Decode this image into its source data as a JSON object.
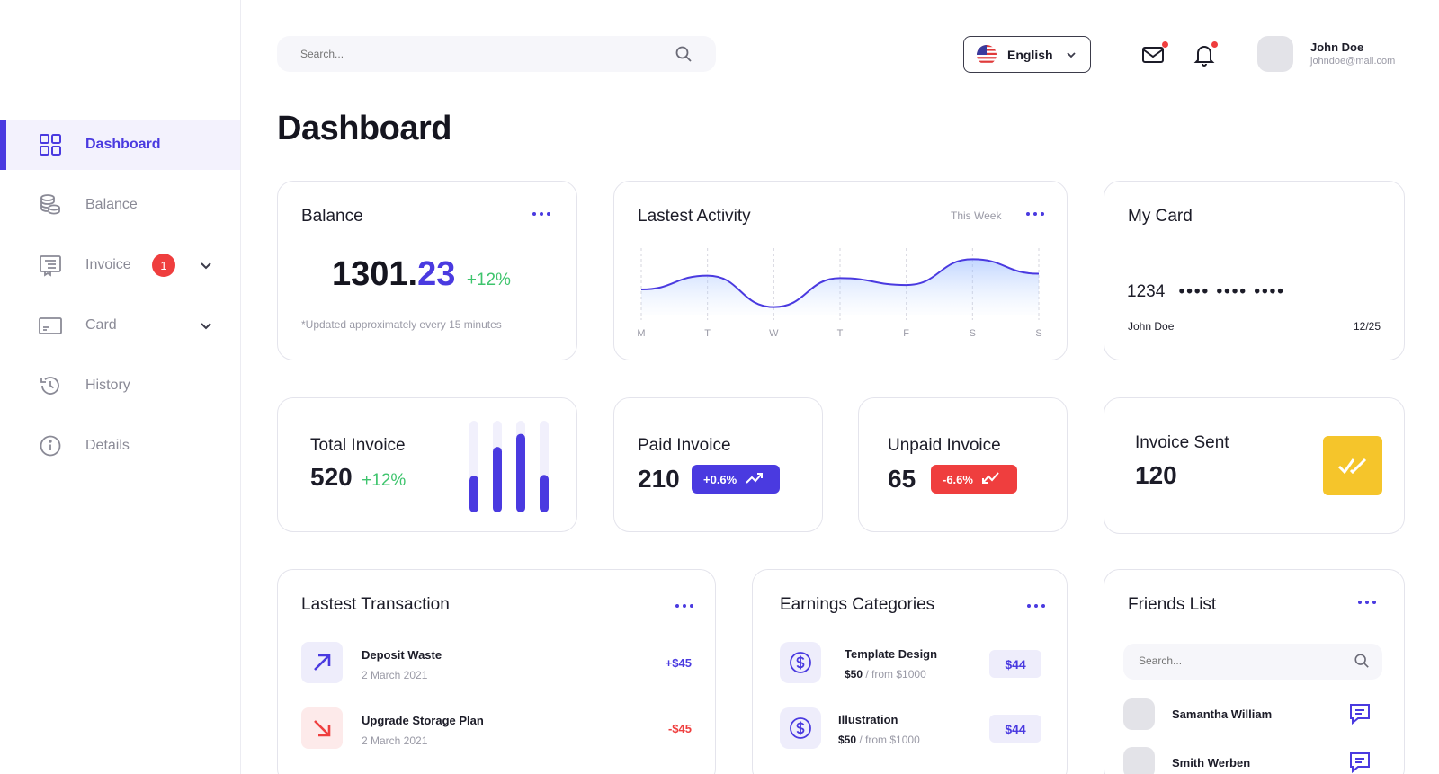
{
  "sidebar": {
    "items": [
      {
        "label": "Dashboard",
        "active": true
      },
      {
        "label": "Balance"
      },
      {
        "label": "Invoice",
        "badge": "1"
      },
      {
        "label": "Card"
      },
      {
        "label": "History"
      },
      {
        "label": "Details"
      }
    ]
  },
  "header": {
    "search_placeholder": "Search...",
    "language": "English",
    "user_name": "John Doe",
    "user_email": "johndoe@mail.com"
  },
  "page_title": "Dashboard",
  "balance_card": {
    "title": "Balance",
    "amount_int": "1301.",
    "amount_dec": "23",
    "change": "+12%",
    "note": "*Updated approximately every 15 minutes"
  },
  "activity_card": {
    "title": "Lastest Activity",
    "period": "This Week",
    "chart_data": {
      "type": "area",
      "categories": [
        "M",
        "T",
        "W",
        "T",
        "F",
        "S",
        "S"
      ],
      "series": [
        {
          "values": [
            40,
            62,
            12,
            58,
            47,
            88,
            65
          ]
        }
      ],
      "ylim": [
        0,
        100
      ],
      "grid": "vertical-dashed"
    }
  },
  "my_card": {
    "title": "My Card",
    "number_first": "1234",
    "masked": "•••• •••• ••••",
    "holder": "John Doe",
    "expiry": "12/25"
  },
  "total_invoice": {
    "title": "Total Invoice",
    "value": "520",
    "change": "+12%",
    "chart_data": {
      "type": "bar",
      "series": [
        {
          "values": [
            42,
            75,
            90,
            43
          ]
        }
      ],
      "ylim": [
        0,
        105
      ]
    }
  },
  "paid_invoice": {
    "title": "Paid Invoice",
    "value": "210",
    "change": "+0.6%"
  },
  "unpaid_invoice": {
    "title": "Unpaid Invoice",
    "value": "65",
    "change": "-6.6%"
  },
  "invoice_sent": {
    "title": "Invoice Sent",
    "value": "120"
  },
  "transactions": {
    "title": "Lastest Transaction",
    "items": [
      {
        "name": "Deposit Waste",
        "date": "2 March 2021",
        "amount": "+$45",
        "direction": "in"
      },
      {
        "name": "Upgrade Storage Plan",
        "date": "2 March 2021",
        "amount": "-$45",
        "direction": "out"
      }
    ]
  },
  "earnings": {
    "title": "Earnings Categories",
    "items": [
      {
        "name": "Template Design",
        "amount": "$50",
        "from": " / from $1000",
        "price": "$44"
      },
      {
        "name": "Illustration",
        "amount": "$50",
        "from": " / from $1000",
        "price": "$44"
      }
    ]
  },
  "friends": {
    "title": "Friends List",
    "search_placeholder": "Search...",
    "items": [
      {
        "name": "Samantha William"
      },
      {
        "name": "Smith Werben"
      }
    ]
  },
  "colors": {
    "accent": "#4a3ae0",
    "positive": "#3ec46d",
    "negative": "#ef3e3e",
    "highlight": "#f5c52b"
  }
}
